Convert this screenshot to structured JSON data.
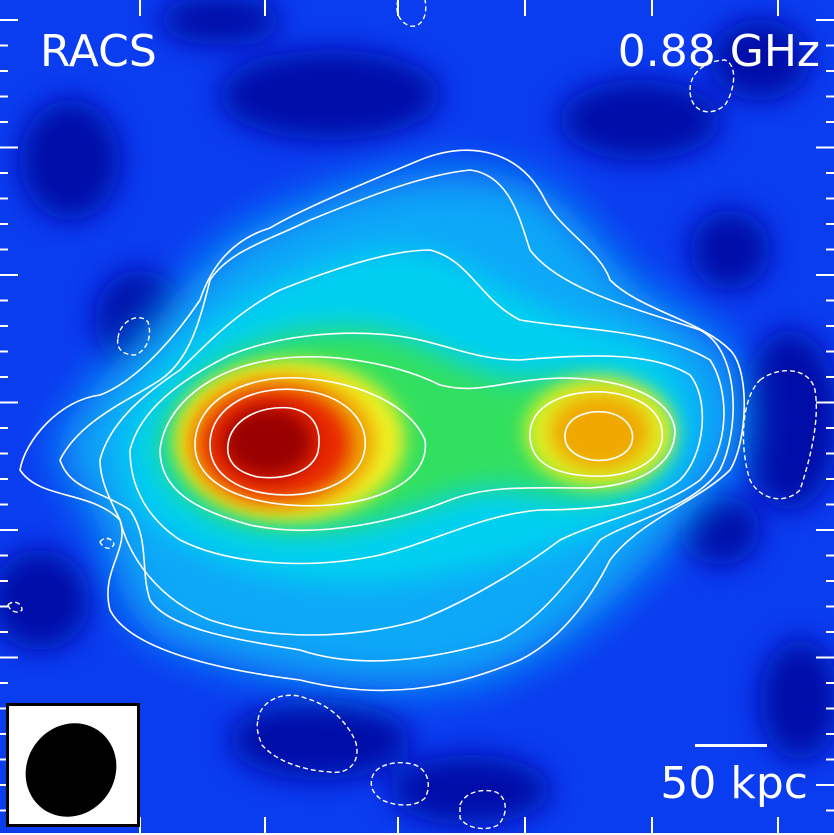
{
  "image": {
    "survey_label": "RACS",
    "frequency_label": "0.88 GHz",
    "scale_bar_label": "50 kpc"
  },
  "colors": {
    "background_deep": "#0010a8",
    "background": "#0a3cf0",
    "cyan": "#00d0f0",
    "green": "#30e060",
    "yellow": "#f0f020",
    "orange": "#f0a000",
    "red": "#d81000",
    "core": "#8a0000",
    "contour": "#ffffff",
    "frame": "#ffffff"
  },
  "features": {
    "sources": [
      {
        "name": "primary-lobe",
        "peak": "core"
      },
      {
        "name": "secondary-lobe",
        "peak": "orange"
      }
    ],
    "positive_contours": "solid white",
    "negative_contours": "dashed white",
    "beam": "filled black ellipse"
  }
}
